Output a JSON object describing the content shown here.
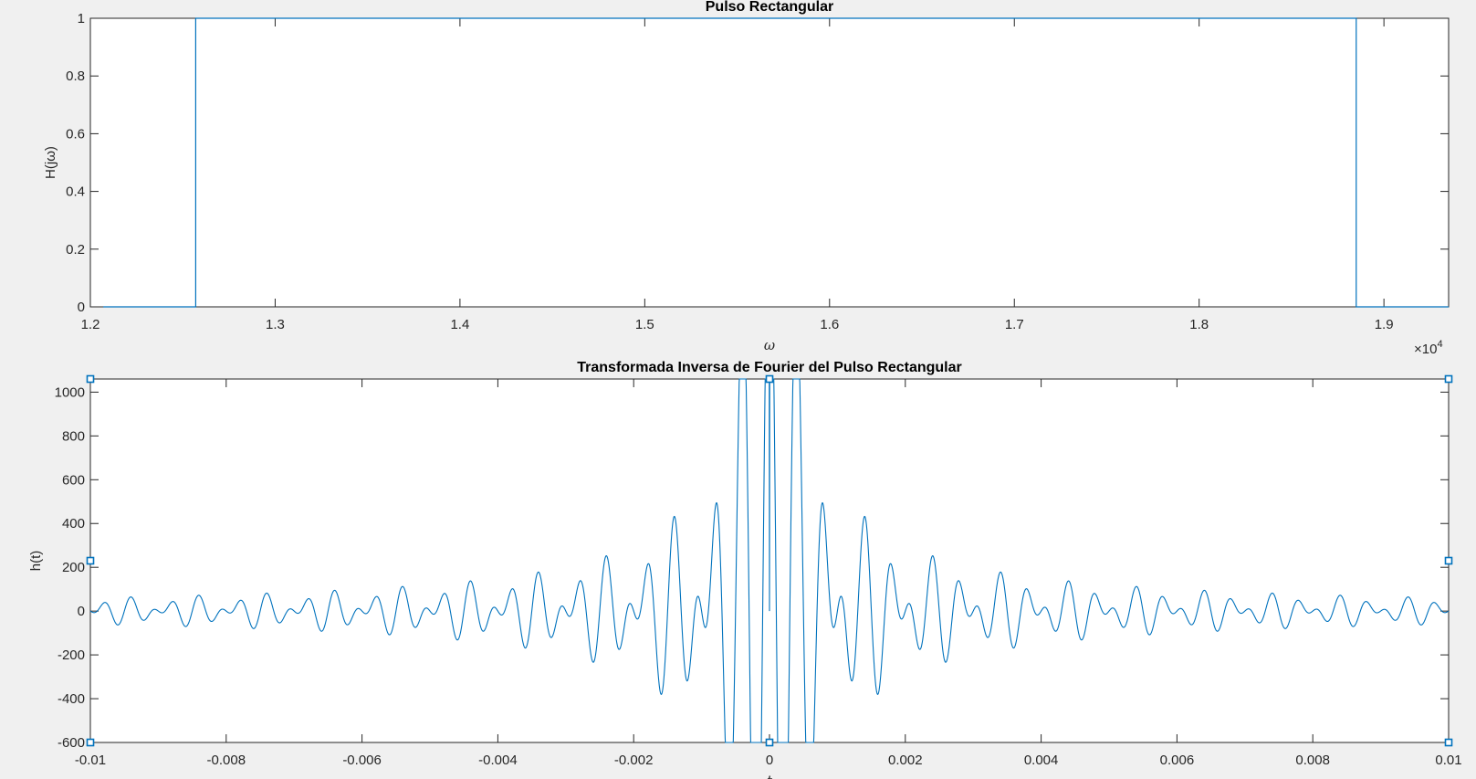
{
  "chart_data": [
    {
      "type": "line",
      "title": "Pulso Rectangular",
      "xlabel": "ω",
      "ylabel": "H(jω)",
      "x_exponent_base": "×10",
      "x_exponent_power": "4",
      "xlim": [
        12000,
        19350
      ],
      "ylim": [
        0,
        1
      ],
      "xticks": [
        1.2,
        1.3,
        1.4,
        1.5,
        1.6,
        1.7,
        1.8,
        1.9
      ],
      "xticklabels": [
        "1.2",
        "1.3",
        "1.4",
        "1.5",
        "1.6",
        "1.7",
        "1.8",
        "1.9"
      ],
      "yticks": [
        0,
        0.2,
        0.4,
        0.6,
        0.8,
        1
      ],
      "yticklabels": [
        "0",
        "0.2",
        "0.4",
        "0.6",
        "0.8",
        "1"
      ],
      "grid": false,
      "color": "#0072bd",
      "series": [
        {
          "x": [
            12070,
            12570,
            12570,
            18850,
            18850,
            19350
          ],
          "y": [
            0,
            0,
            1,
            1,
            0,
            0
          ]
        }
      ]
    },
    {
      "type": "line",
      "title": "Transformada Inversa de Fourier del Pulso Rectangular",
      "xlabel": "t",
      "ylabel": "h(t)",
      "xlim": [
        -0.01,
        0.01
      ],
      "ylim": [
        -600,
        1060
      ],
      "xticks": [
        -0.01,
        -0.008,
        -0.006,
        -0.004,
        -0.002,
        0,
        0.002,
        0.004,
        0.006,
        0.008,
        0.01
      ],
      "xticklabels": [
        "-0.01",
        "-0.008",
        "-0.006",
        "-0.004",
        "-0.002",
        "0",
        "0.002",
        "0.004",
        "0.006",
        "0.008",
        "0.01"
      ],
      "yticks": [
        -600,
        -400,
        -200,
        0,
        200,
        400,
        600,
        800,
        1000
      ],
      "yticklabels": [
        "-600",
        "-400",
        "-200",
        "0",
        "200",
        "400",
        "600",
        "800",
        "1000"
      ],
      "grid": false,
      "color": "#0072bd",
      "series": [
        {
          "function": "sinc_bandpass",
          "w1": 12566,
          "w2": 18850,
          "t_range": [
            -0.01,
            0.01
          ]
        }
      ],
      "selection_handles": true
    }
  ]
}
